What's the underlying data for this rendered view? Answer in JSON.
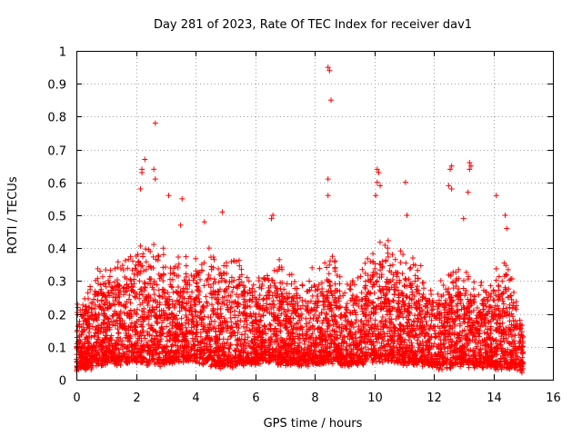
{
  "chart_data": {
    "type": "scatter",
    "title": "Day 281 of 2023, Rate Of TEC Index for receiver dav1",
    "xlabel": "GPS time / hours",
    "ylabel": "ROTI / TECUs",
    "xlim": [
      0,
      16
    ],
    "ylim": [
      0,
      1
    ],
    "xticks": [
      "0",
      "2",
      "4",
      "6",
      "8",
      "10",
      "12",
      "14",
      "16"
    ],
    "yticks": [
      "0",
      "0.1",
      "0.2",
      "0.3",
      "0.4",
      "0.5",
      "0.6",
      "0.7",
      "0.8",
      "0.9",
      "1"
    ],
    "grid": true,
    "marker": "plus",
    "color": "#ff0000",
    "x_range_of_data": [
      0,
      15
    ],
    "envelope": {
      "note_hours": [
        0,
        0.5,
        1,
        1.5,
        2,
        2.5,
        3,
        3.5,
        4,
        4.5,
        5,
        5.5,
        6,
        6.5,
        7,
        7.5,
        8,
        8.5,
        9,
        9.5,
        10,
        10.5,
        11,
        11.5,
        12,
        12.5,
        13,
        13.5,
        14,
        14.5,
        15
      ],
      "typical_upper": [
        0.22,
        0.32,
        0.36,
        0.38,
        0.42,
        0.44,
        0.4,
        0.38,
        0.4,
        0.42,
        0.35,
        0.38,
        0.32,
        0.4,
        0.34,
        0.3,
        0.36,
        0.4,
        0.3,
        0.34,
        0.42,
        0.44,
        0.4,
        0.38,
        0.28,
        0.34,
        0.36,
        0.3,
        0.32,
        0.4,
        0.18
      ],
      "typical_lower": [
        0.03,
        0.04,
        0.05,
        0.05,
        0.06,
        0.05,
        0.05,
        0.06,
        0.06,
        0.05,
        0.04,
        0.05,
        0.05,
        0.06,
        0.05,
        0.05,
        0.05,
        0.06,
        0.05,
        0.05,
        0.06,
        0.06,
        0.05,
        0.05,
        0.04,
        0.04,
        0.05,
        0.04,
        0.04,
        0.04,
        0.03
      ]
    },
    "notable_points": [
      {
        "x": 2.2,
        "y": 0.64
      },
      {
        "x": 2.3,
        "y": 0.67
      },
      {
        "x": 2.2,
        "y": 0.63
      },
      {
        "x": 2.15,
        "y": 0.58
      },
      {
        "x": 2.65,
        "y": 0.78
      },
      {
        "x": 2.6,
        "y": 0.64
      },
      {
        "x": 2.65,
        "y": 0.61
      },
      {
        "x": 3.1,
        "y": 0.56
      },
      {
        "x": 3.55,
        "y": 0.55
      },
      {
        "x": 3.5,
        "y": 0.47
      },
      {
        "x": 4.3,
        "y": 0.48
      },
      {
        "x": 4.9,
        "y": 0.51
      },
      {
        "x": 6.6,
        "y": 0.5
      },
      {
        "x": 6.55,
        "y": 0.49
      },
      {
        "x": 8.45,
        "y": 0.95
      },
      {
        "x": 8.5,
        "y": 0.94
      },
      {
        "x": 8.55,
        "y": 0.85
      },
      {
        "x": 8.45,
        "y": 0.61
      },
      {
        "x": 8.45,
        "y": 0.56
      },
      {
        "x": 10.1,
        "y": 0.64
      },
      {
        "x": 10.15,
        "y": 0.63
      },
      {
        "x": 10.1,
        "y": 0.6
      },
      {
        "x": 10.2,
        "y": 0.59
      },
      {
        "x": 10.05,
        "y": 0.56
      },
      {
        "x": 11.05,
        "y": 0.6
      },
      {
        "x": 11.1,
        "y": 0.5
      },
      {
        "x": 12.6,
        "y": 0.65
      },
      {
        "x": 12.55,
        "y": 0.64
      },
      {
        "x": 12.5,
        "y": 0.59
      },
      {
        "x": 12.6,
        "y": 0.58
      },
      {
        "x": 13.2,
        "y": 0.66
      },
      {
        "x": 13.25,
        "y": 0.65
      },
      {
        "x": 13.2,
        "y": 0.64
      },
      {
        "x": 13.15,
        "y": 0.57
      },
      {
        "x": 13.0,
        "y": 0.49
      },
      {
        "x": 14.1,
        "y": 0.56
      },
      {
        "x": 14.4,
        "y": 0.5
      },
      {
        "x": 14.45,
        "y": 0.46
      }
    ]
  }
}
